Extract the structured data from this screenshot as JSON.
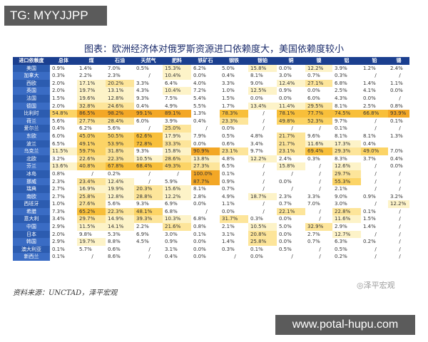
{
  "watermark_top": "TG: MYYJJPP",
  "watermark_bottom": "www.potal-hupu.com",
  "watermark_weibo": "◎泽平宏观",
  "source": "资料来源：UNCTAD，泽平宏观",
  "colors": {
    "header_bg": "#1b3f8f",
    "rowlabel_bg": "#2c5cb0",
    "cell_scale": [
      "#ffffff",
      "#fdf3c8",
      "#fde59a",
      "#fcd466",
      "#f8bf3a",
      "#f3a726"
    ]
  },
  "chart_data": {
    "type": "table",
    "title": "图表：欧洲经济体对俄罗斯资源进口依赖度大，美国依赖度较小",
    "columns": [
      "进口依赖度",
      "总体",
      "煤",
      "石油",
      "天然气",
      "肥料",
      "铁矿石",
      "钢铁",
      "银铂",
      "铜",
      "镍",
      "铝",
      "铅",
      "锡"
    ],
    "rows": [
      {
        "name": "美国",
        "values": [
          "0.9%",
          "1.4%",
          "7.0%",
          "0.5%",
          "15.3%",
          "6.2%",
          "5.0%",
          "15.8%",
          "0.0%",
          "12.2%",
          "3.9%",
          "1.2%",
          "2.4%"
        ]
      },
      {
        "name": "加拿大",
        "values": [
          "0.3%",
          "2.2%",
          "2.3%",
          "/",
          "10.4%",
          "0.0%",
          "0.4%",
          "8.1%",
          "3.0%",
          "0.7%",
          "0.3%",
          "/",
          "/"
        ]
      },
      {
        "name": "西欧",
        "values": [
          "2.0%",
          "17.1%",
          "20.2%",
          "3.3%",
          "6.4%",
          "4.0%",
          "3.3%",
          "9.0%",
          "12.4%",
          "27.1%",
          "6.8%",
          "1.4%",
          "1.1%"
        ]
      },
      {
        "name": "英国",
        "values": [
          "2.0%",
          "19.7%",
          "13.1%",
          "4.3%",
          "10.4%",
          "7.2%",
          "1.0%",
          "12.5%",
          "0.9%",
          "0.0%",
          "2.5%",
          "4.1%",
          "0.0%"
        ]
      },
      {
        "name": "法国",
        "values": [
          "1.5%",
          "19.6%",
          "12.8%",
          "9.3%",
          "7.5%",
          "5.4%",
          "1.5%",
          "0.0%",
          "0.0%",
          "6.0%",
          "4.3%",
          "0.0%",
          "/"
        ]
      },
      {
        "name": "德国",
        "values": [
          "2.0%",
          "32.8%",
          "24.6%",
          "0.4%",
          "4.9%",
          "5.5%",
          "1.7%",
          "13.4%",
          "11.4%",
          "29.5%",
          "8.1%",
          "2.5%",
          "0.8%"
        ]
      },
      {
        "name": "比利时",
        "values": [
          "54.8%",
          "86.5%",
          "98.2%",
          "99.1%",
          "89.1%",
          "1.3%",
          "78.3%",
          "/",
          "78.1%",
          "77.7%",
          "74.5%",
          "66.8%",
          "93.9%"
        ]
      },
      {
        "name": "荷兰",
        "values": [
          "5.6%",
          "27.7%",
          "28.4%",
          "6.0%",
          "3.9%",
          "0.4%",
          "23.3%",
          "/",
          "49.8%",
          "52.3%",
          "9.7%",
          "/",
          "0.1%"
        ]
      },
      {
        "name": "爱尔兰",
        "values": [
          "0.4%",
          "6.2%",
          "5.6%",
          "/",
          "25.0%",
          "/",
          "0.0%",
          "/",
          "/",
          "/",
          "0.1%",
          "/",
          "/"
        ]
      },
      {
        "name": "东欧",
        "values": [
          "6.0%",
          "45.0%",
          "50.5%",
          "62.6%",
          "17.9%",
          "7.9%",
          "0.5%",
          "4.8%",
          "21.7%",
          "9.6%",
          "8.1%",
          "8.1%",
          "1.3%"
        ]
      },
      {
        "name": "波兰",
        "values": [
          "6.5%",
          "49.1%",
          "53.9%",
          "72.8%",
          "33.3%",
          "0.0%",
          "0.6%",
          "3.4%",
          "21.7%",
          "11.6%",
          "17.3%",
          "0.4%",
          ""
        ]
      },
      {
        "name": "乌克兰",
        "values": [
          "11.5%",
          "59.7%",
          "31.8%",
          "9.3%",
          "15.8%",
          "90.9%",
          "23.1%",
          "9.7%",
          "23.1%",
          "69.4%",
          "29.3%",
          "49.0%",
          "7.0%"
        ]
      },
      {
        "name": "北欧",
        "values": [
          "3.2%",
          "22.6%",
          "22.3%",
          "10.5%",
          "28.6%",
          "13.8%",
          "4.8%",
          "12.2%",
          "2.4%",
          "0.3%",
          "8.3%",
          "3.7%",
          "0.4%"
        ]
      },
      {
        "name": "芬兰",
        "values": [
          "13.6%",
          "40.8%",
          "67.8%",
          "68.4%",
          "49.3%",
          "27.3%",
          "6.5%",
          "/",
          "15.8%",
          "/",
          "12.6%",
          "/",
          "0.0%"
        ]
      },
      {
        "name": "冰岛",
        "values": [
          "0.8%",
          "/",
          "0.2%",
          "/",
          "/",
          "100.0%",
          "0.1%",
          "/",
          "/",
          "/",
          "29.7%",
          "/",
          "/"
        ]
      },
      {
        "name": "挪威",
        "values": [
          "2.3%",
          "23.4%",
          "12.4%",
          "/",
          "5.9%",
          "87.7%",
          "0.9%",
          "/",
          "0.0%",
          "/",
          "55.3%",
          "/",
          "/"
        ]
      },
      {
        "name": "瑞典",
        "values": [
          "2.7%",
          "16.9%",
          "19.9%",
          "20.3%",
          "15.6%",
          "8.1%",
          "0.7%",
          "/",
          "/",
          "/",
          "2.1%",
          "/",
          "/"
        ]
      },
      {
        "name": "南欧",
        "values": [
          "2.7%",
          "25.8%",
          "12.8%",
          "28.8%",
          "12.2%",
          "2.8%",
          "4.9%",
          "18.7%",
          "2.3%",
          "3.3%",
          "9.0%",
          "0.9%",
          "3.2%"
        ]
      },
      {
        "name": "西班牙",
        "values": [
          "1.0%",
          "27.6%",
          "5.6%",
          "9.3%",
          "6.9%",
          "0.0%",
          "1.1%",
          "/",
          "0.7%",
          "7.0%",
          "3.0%",
          "/",
          "12.2%"
        ]
      },
      {
        "name": "希腊",
        "values": [
          "7.3%",
          "65.2%",
          "22.3%",
          "48.1%",
          "6.8%",
          "/",
          "0.0%",
          "/",
          "22.1%",
          "/",
          "22.8%",
          "0.1%",
          "/"
        ]
      },
      {
        "name": "意大利",
        "values": [
          "3.4%",
          "29.7%",
          "14.9%",
          "39.3%",
          "10.3%",
          "6.8%",
          "31.7%",
          "0.3%",
          "0.0%",
          "/",
          "11.6%",
          "1.5%",
          "/"
        ]
      },
      {
        "name": "中国",
        "values": [
          "2.9%",
          "11.5%",
          "14.1%",
          "2.2%",
          "21.6%",
          "0.8%",
          "2.1%",
          "10.5%",
          "5.0%",
          "32.9%",
          "2.9%",
          "1.4%",
          "/"
        ]
      },
      {
        "name": "日本",
        "values": [
          "2.0%",
          "9.8%",
          "5.3%",
          "6.9%",
          "3.0%",
          "0.1%",
          "3.1%",
          "20.8%",
          "0.0%",
          "2.7%",
          "12.7%",
          "/",
          "/"
        ]
      },
      {
        "name": "韩国",
        "values": [
          "2.9%",
          "19.7%",
          "8.8%",
          "4.5%",
          "0.9%",
          "0.0%",
          "1.4%",
          "25.8%",
          "0.0%",
          "0.7%",
          "6.3%",
          "0.2%",
          "/"
        ]
      },
      {
        "name": "澳大利亚",
        "values": [
          "0.1%",
          "5.7%",
          "0.6%",
          "/",
          "3.1%",
          "0.0%",
          "0.3%",
          "0.1%",
          "0.5%",
          "/",
          "0.5%",
          "/",
          "/"
        ]
      },
      {
        "name": "新西兰",
        "values": [
          "0.1%",
          "/",
          "8.6%",
          "/",
          "0.4%",
          "0.0%",
          "/",
          "0.0%",
          "/",
          "/",
          "0.2%",
          "/",
          "/"
        ]
      }
    ]
  }
}
